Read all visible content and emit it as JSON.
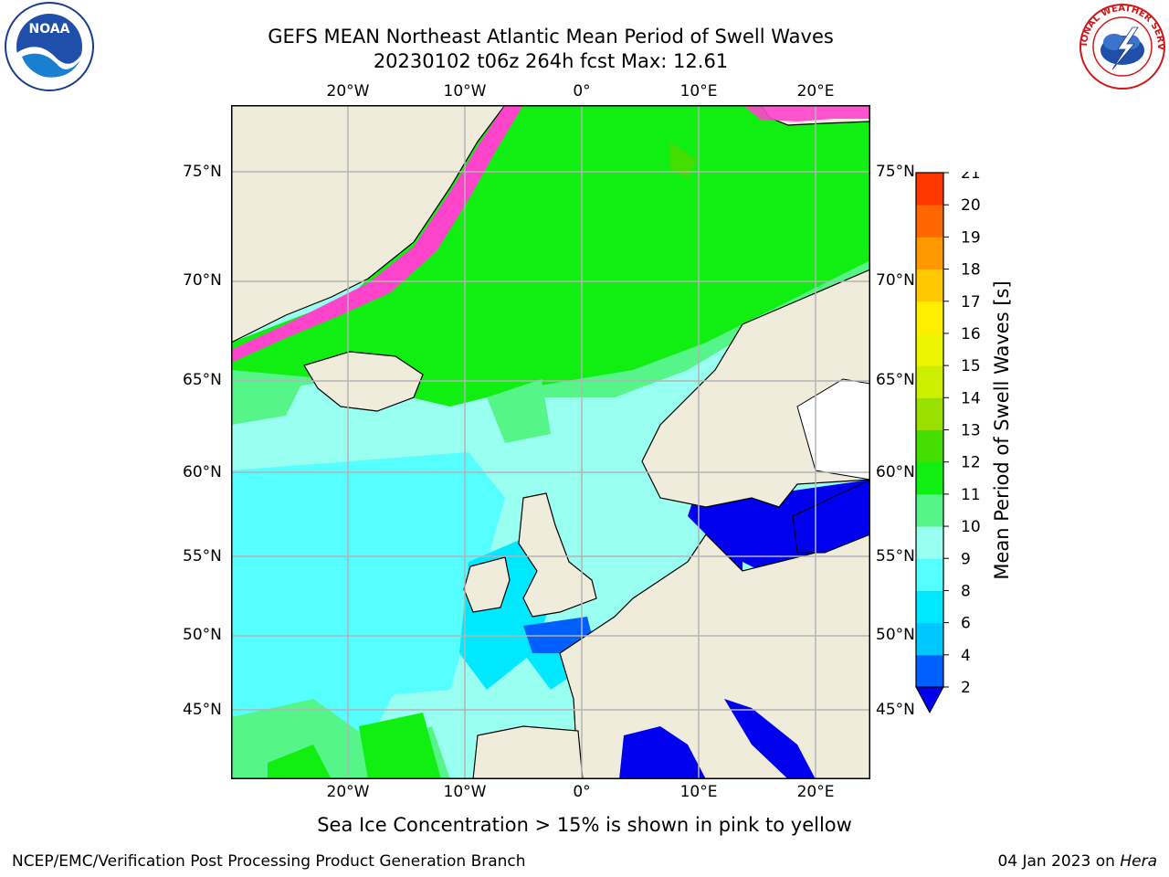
{
  "title": {
    "line1": "GEFS MEAN Northeast Atlantic Mean Period of Swell Waves",
    "line2": "20230102 t06z 264h fcst   Max: 12.61"
  },
  "map": {
    "lon_labels": [
      "20°W",
      "10°W",
      "0°",
      "10°E",
      "20°E"
    ],
    "lat_labels": [
      "75°N",
      "70°N",
      "65°N",
      "60°N",
      "55°N",
      "50°N",
      "45°N"
    ],
    "grid": true
  },
  "colorbar": {
    "title": "Mean Period of Swell Waves [s]",
    "ticks": [
      "2",
      "4",
      "6",
      "8",
      "9",
      "10",
      "11",
      "12",
      "13",
      "14",
      "15",
      "16",
      "17",
      "18",
      "19",
      "20",
      "21"
    ],
    "colors": [
      "#0060ff",
      "#00c8ff",
      "#00e8ff",
      "#55ffff",
      "#99fff0",
      "#55f58a",
      "#11ee11",
      "#44dd00",
      "#99e000",
      "#ccee00",
      "#eef500",
      "#ffee00",
      "#ffc800",
      "#ff9800",
      "#ff6800",
      "#ff3800",
      "#ff0000"
    ],
    "extend_min_color": "#0000ee"
  },
  "colors": {
    "land": "#efecdc",
    "ice": "#ff44cc",
    "grid": "#b4b4b4"
  },
  "note": "Sea Ice Concentration > 15% is shown in pink to yellow",
  "credit": {
    "left": "NCEP/EMC/Verification Post Processing Product Generation Branch",
    "right_date": "04 Jan 2023 on ",
    "right_host": "Hera"
  },
  "logos": {
    "noaa_text": "NOAA",
    "nws_text": "NATIONAL WEATHER SERVICE"
  }
}
